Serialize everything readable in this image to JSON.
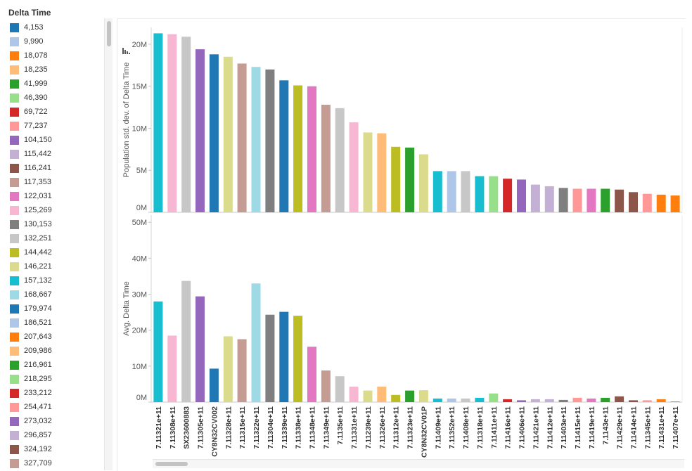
{
  "legend": {
    "title": "Delta Time",
    "items": [
      {
        "label": "4,153",
        "color": "#1f77b4"
      },
      {
        "label": "9,990",
        "color": "#aec7e8"
      },
      {
        "label": "18,078",
        "color": "#ff7f0e"
      },
      {
        "label": "18,235",
        "color": "#ffbb78"
      },
      {
        "label": "41,999",
        "color": "#2ca02c"
      },
      {
        "label": "46,390",
        "color": "#98df8a"
      },
      {
        "label": "69,722",
        "color": "#d62728"
      },
      {
        "label": "77,237",
        "color": "#ff9896"
      },
      {
        "label": "104,150",
        "color": "#9467bd"
      },
      {
        "label": "115,442",
        "color": "#c5b0d5"
      },
      {
        "label": "116,241",
        "color": "#8c564b"
      },
      {
        "label": "117,353",
        "color": "#c49c94"
      },
      {
        "label": "122,031",
        "color": "#e377c2"
      },
      {
        "label": "125,269",
        "color": "#f7b6d2"
      },
      {
        "label": "130,153",
        "color": "#7f7f7f"
      },
      {
        "label": "132,251",
        "color": "#c7c7c7"
      },
      {
        "label": "144,442",
        "color": "#bcbd22"
      },
      {
        "label": "146,221",
        "color": "#dbdb8d"
      },
      {
        "label": "157,132",
        "color": "#17becf"
      },
      {
        "label": "168,667",
        "color": "#9edae5"
      },
      {
        "label": "179,974",
        "color": "#1f77b4"
      },
      {
        "label": "186,521",
        "color": "#aec7e8"
      },
      {
        "label": "207,643",
        "color": "#ff7f0e"
      },
      {
        "label": "209,986",
        "color": "#ffbb78"
      },
      {
        "label": "216,961",
        "color": "#2ca02c"
      },
      {
        "label": "218,295",
        "color": "#98df8a"
      },
      {
        "label": "233,212",
        "color": "#d62728"
      },
      {
        "label": "254,471",
        "color": "#ff9896"
      },
      {
        "label": "273,032",
        "color": "#9467bd"
      },
      {
        "label": "296,857",
        "color": "#c5b0d5"
      },
      {
        "label": "324,192",
        "color": "#8c564b"
      },
      {
        "label": "327,709",
        "color": "#c49c94"
      }
    ]
  },
  "chart_data": {
    "type": "bar",
    "categories": [
      "7.11321e+11",
      "7.11308e+11",
      "SX23600883",
      "7.11305e+11",
      "CY8N32CV002",
      "7.11328e+11",
      "7.11315e+11",
      "7.11322e+11",
      "7.11304e+11",
      "7.11339e+11",
      "7.11338e+11",
      "7.11348e+11",
      "7.11349e+11",
      "7.1135e+11",
      "7.11331e+11",
      "7.11239e+11",
      "7.11326e+11",
      "7.11312e+11",
      "7.11323e+11",
      "CY8N32CV01P",
      "7.11409e+11",
      "7.11352e+11",
      "7.11408e+11",
      "7.11318e+11",
      "7.11411e+11",
      "7.11416e+11",
      "7.11406e+11",
      "7.11421e+11",
      "7.11412e+11",
      "7.11403e+11",
      "7.11415e+11",
      "7.11419e+11",
      "7.1143e+11",
      "7.11429e+11",
      "7.11414e+11",
      "7.11345e+11",
      "7.11431e+11",
      "7.11407e+11"
    ],
    "colors": [
      "#17becf",
      "#f7b6d2",
      "#c7c7c7",
      "#9467bd",
      "#1f77b4",
      "#dbdb8d",
      "#c49c94",
      "#9edae5",
      "#7f7f7f",
      "#1f77b4",
      "#bcbd22",
      "#e377c2",
      "#c49c94",
      "#c7c7c7",
      "#f7b6d2",
      "#dbdb8d",
      "#ffbb78",
      "#bcbd22",
      "#2ca02c",
      "#dbdb8d",
      "#17becf",
      "#aec7e8",
      "#c7c7c7",
      "#17becf",
      "#98df8a",
      "#d62728",
      "#9467bd",
      "#c5b0d5",
      "#c5b0d5",
      "#7f7f7f",
      "#ff9896",
      "#e377c2",
      "#2ca02c",
      "#8c564b",
      "#8c564b",
      "#ff9896",
      "#ff7f0e",
      "#ff7f0e"
    ],
    "panels": [
      {
        "ylabel": "Population std. dev. of Delta Time",
        "ylim": [
          0,
          22000000
        ],
        "ticks": [
          {
            "v": 0,
            "label": "0M"
          },
          {
            "v": 5000000,
            "label": "5M"
          },
          {
            "v": 10000000,
            "label": "10M"
          },
          {
            "v": 15000000,
            "label": "15M"
          },
          {
            "v": 20000000,
            "label": "20M"
          }
        ],
        "values": [
          21300000,
          21200000,
          20900000,
          19400000,
          18800000,
          18500000,
          17700000,
          17300000,
          17000000,
          15700000,
          15100000,
          15000000,
          12800000,
          12400000,
          10700000,
          9500000,
          9400000,
          7800000,
          7700000,
          6900000,
          4900000,
          4900000,
          4900000,
          4300000,
          4300000,
          4000000,
          3900000,
          3300000,
          3100000,
          2900000,
          2800000,
          2800000,
          2800000,
          2700000,
          2400000,
          2200000,
          2100000,
          2000000
        ]
      },
      {
        "ylabel": "Avg. Delta Time",
        "ylim": [
          0,
          52000000
        ],
        "ticks": [
          {
            "v": 0,
            "label": "0M"
          },
          {
            "v": 10000000,
            "label": "10M"
          },
          {
            "v": 20000000,
            "label": "20M"
          },
          {
            "v": 30000000,
            "label": "30M"
          },
          {
            "v": 40000000,
            "label": "40M"
          },
          {
            "v": 50000000,
            "label": "50M"
          }
        ],
        "values": [
          28000000,
          18500000,
          33700000,
          29400000,
          9300000,
          18300000,
          17500000,
          33000000,
          24300000,
          25100000,
          24000000,
          15400000,
          8800000,
          7200000,
          4300000,
          3200000,
          4300000,
          2000000,
          3200000,
          3300000,
          1000000,
          1000000,
          1000000,
          1200000,
          2400000,
          800000,
          500000,
          800000,
          800000,
          600000,
          1200000,
          1000000,
          1200000,
          1600000,
          500000,
          500000,
          800000,
          200000
        ]
      }
    ]
  }
}
